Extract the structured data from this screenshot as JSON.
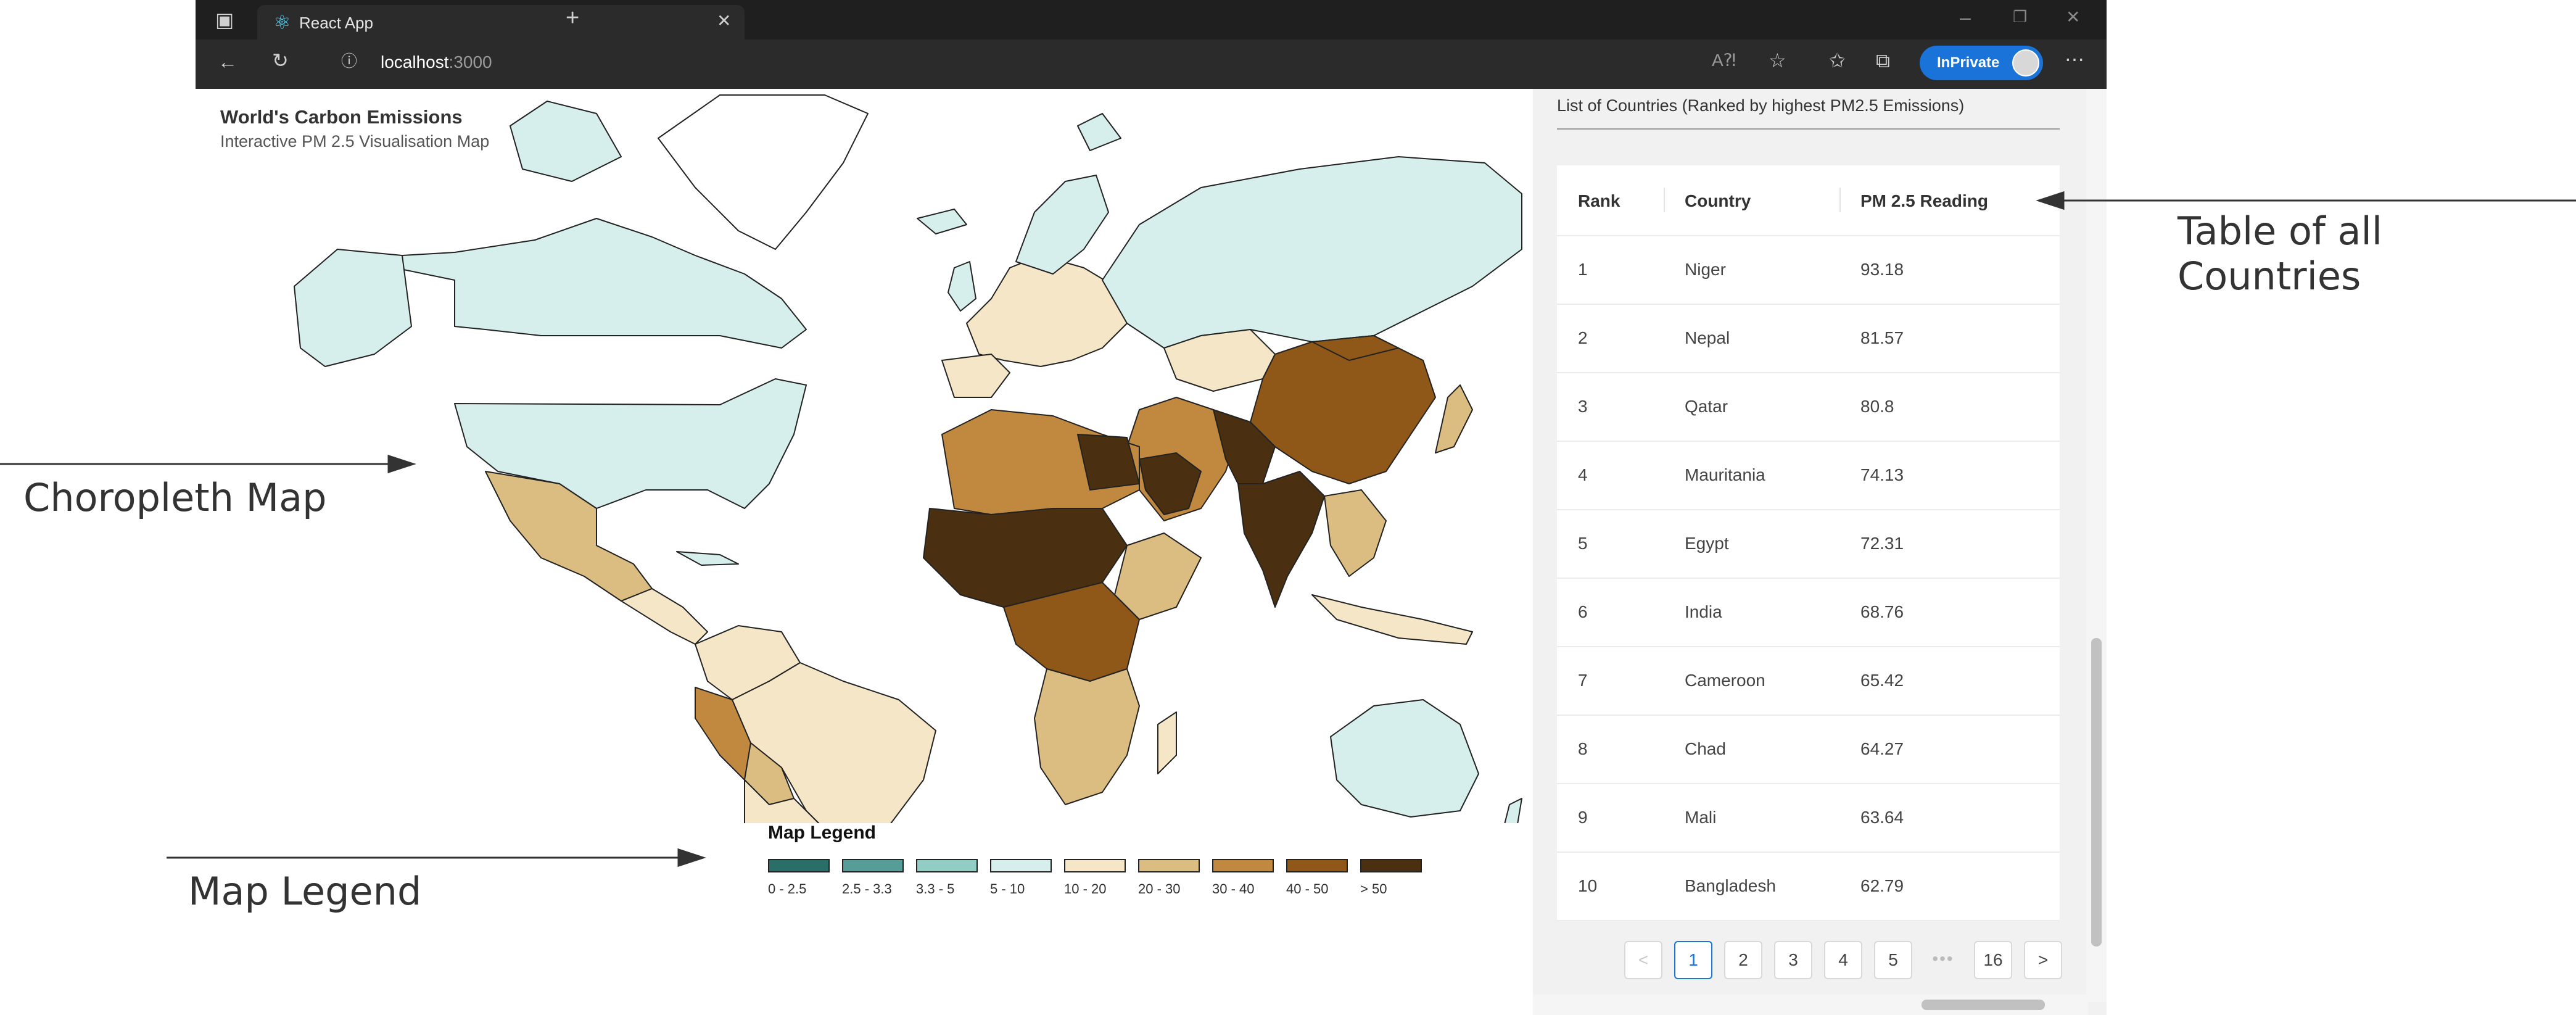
{
  "browser": {
    "tab_title": "React App",
    "url_host": "localhost",
    "url_port": ":3000",
    "inprivate_label": "InPrivate",
    "icons": [
      "tab-actions-icon",
      "react-logo-icon",
      "close-tab-icon",
      "new-tab-icon",
      "back-icon",
      "refresh-icon",
      "info-icon",
      "read-aloud-icon",
      "add-favorite-icon",
      "favorites-icon",
      "collections-icon",
      "more-icon",
      "minimize-icon",
      "restore-icon",
      "close-window-icon"
    ]
  },
  "map": {
    "title": "World's Carbon Emissions",
    "subtitle": "Interactive PM 2.5 Visualisation Map",
    "legend_title": "Map Legend",
    "legend": [
      {
        "label": "0 - 2.5",
        "color": "#2b6e68"
      },
      {
        "label": "2.5 - 3.3",
        "color": "#559d96"
      },
      {
        "label": "3.3 - 5",
        "color": "#92cdc5"
      },
      {
        "label": "5 - 10",
        "color": "#d6eeec"
      },
      {
        "label": "10 - 20",
        "color": "#f4e6c6"
      },
      {
        "label": "20 - 30",
        "color": "#dbbd82"
      },
      {
        "label": "30 - 40",
        "color": "#c1893f"
      },
      {
        "label": "40 - 50",
        "color": "#8f5818"
      },
      {
        "label": "> 50",
        "color": "#4a3010"
      }
    ]
  },
  "table": {
    "title": "List of Countries (Ranked by highest PM2.5 Emissions)",
    "headers": [
      "Rank",
      "Country",
      "PM 2.5 Reading"
    ],
    "rows": [
      {
        "rank": "1",
        "country": "Niger",
        "reading": "93.18"
      },
      {
        "rank": "2",
        "country": "Nepal",
        "reading": "81.57"
      },
      {
        "rank": "3",
        "country": "Qatar",
        "reading": "80.8"
      },
      {
        "rank": "4",
        "country": "Mauritania",
        "reading": "74.13"
      },
      {
        "rank": "5",
        "country": "Egypt",
        "reading": "72.31"
      },
      {
        "rank": "6",
        "country": "India",
        "reading": "68.76"
      },
      {
        "rank": "7",
        "country": "Cameroon",
        "reading": "65.42"
      },
      {
        "rank": "8",
        "country": "Chad",
        "reading": "64.27"
      },
      {
        "rank": "9",
        "country": "Mali",
        "reading": "63.64"
      },
      {
        "rank": "10",
        "country": "Bangladesh",
        "reading": "62.79"
      }
    ],
    "pagination": {
      "prev": "<",
      "pages": [
        "1",
        "2",
        "3",
        "4",
        "5"
      ],
      "dots": "•••",
      "last": "16",
      "next": ">",
      "current": "1"
    }
  },
  "annotations": {
    "table": "Table of all Countries",
    "map": "Choropleth Map",
    "legend": "Map Legend"
  }
}
